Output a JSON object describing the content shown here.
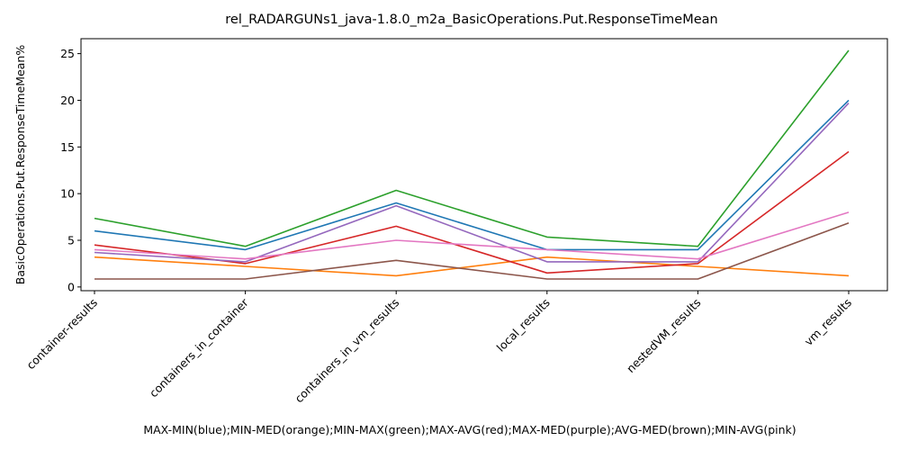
{
  "chart_data": {
    "type": "line",
    "title": "rel_RADARGUNs1_java-1.8.0_m2a_BasicOperations.Put.ResponseTimeMean",
    "xlabel": "MAX-MIN(blue);MIN-MED(orange);MIN-MAX(green);MAX-AVG(red);MAX-MED(purple);AVG-MED(brown);MIN-AVG(pink)",
    "ylabel": "BasicOperations.Put.ResponseTimeMean%",
    "categories": [
      "container-results",
      "containers_in_container",
      "containers_in_vm_results",
      "local_results",
      "nestedVM_results",
      "vm_results"
    ],
    "yticks": [
      0,
      5,
      10,
      15,
      20,
      25
    ],
    "ylim": [
      -0.4,
      26.6
    ],
    "grid": false,
    "legend": "none",
    "series": [
      {
        "color": "#1f77b4",
        "values": [
          6.0,
          4.0,
          9.0,
          4.0,
          4.0,
          20.0
        ]
      },
      {
        "color": "#ff7f0e",
        "values": [
          3.2,
          2.2,
          1.2,
          3.2,
          2.2,
          1.2
        ]
      },
      {
        "color": "#2ca02c",
        "values": [
          7.35,
          4.35,
          10.35,
          5.35,
          4.35,
          25.35
        ]
      },
      {
        "color": "#d62728",
        "values": [
          4.5,
          2.5,
          6.5,
          1.5,
          2.5,
          14.5
        ]
      },
      {
        "color": "#9467bd",
        "values": [
          3.7,
          2.7,
          8.7,
          2.7,
          2.7,
          19.7
        ]
      },
      {
        "color": "#8c564b",
        "values": [
          0.85,
          0.85,
          2.85,
          0.85,
          0.85,
          6.85
        ]
      },
      {
        "color": "#e377c2",
        "values": [
          4.0,
          3.0,
          5.0,
          4.0,
          3.0,
          8.0
        ]
      }
    ]
  }
}
